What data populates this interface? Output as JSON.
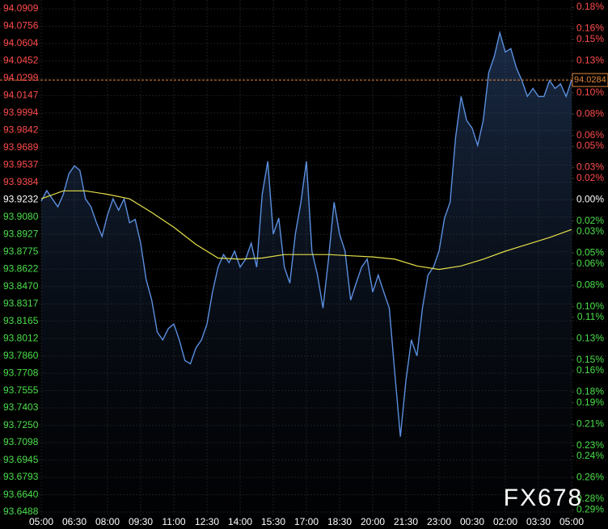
{
  "chart_data": {
    "type": "line",
    "watermark": "FX678",
    "xlim": [
      0,
      24
    ],
    "xticks": [
      {
        "value": 0,
        "label": "05:00"
      },
      {
        "value": 1.5,
        "label": "06:30"
      },
      {
        "value": 3,
        "label": "08:00"
      },
      {
        "value": 4.5,
        "label": "09:30"
      },
      {
        "value": 6,
        "label": "11:00"
      },
      {
        "value": 7.5,
        "label": "12:30"
      },
      {
        "value": 9,
        "label": "14:00"
      },
      {
        "value": 10.5,
        "label": "15:30"
      },
      {
        "value": 12,
        "label": "17:00"
      },
      {
        "value": 13.5,
        "label": "18:30"
      },
      {
        "value": 15,
        "label": "20:00"
      },
      {
        "value": 16.5,
        "label": "21:30"
      },
      {
        "value": 18,
        "label": "23:00"
      },
      {
        "value": 19.5,
        "label": "00:30"
      },
      {
        "value": 21,
        "label": "02:00"
      },
      {
        "value": 22.5,
        "label": "03:30"
      },
      {
        "value": 24,
        "label": "05:00"
      }
    ],
    "ylim": [
      93.6488,
      94.0909
    ],
    "yticks": [
      94.0909,
      94.0756,
      94.0604,
      94.0452,
      94.0299,
      94.0147,
      93.9994,
      93.9842,
      93.9689,
      93.9537,
      93.9384,
      93.9232,
      {
        "value": 93.908,
        "label": "93.9080"
      },
      93.8927,
      93.8775,
      93.8622,
      {
        "value": 93.847,
        "label": "93.8470"
      },
      93.8317,
      93.8165,
      93.8012,
      {
        "value": 93.786,
        "label": "93.7860"
      },
      93.7708,
      93.7555,
      93.7403,
      {
        "value": 93.725,
        "label": "93.7250"
      },
      93.7098,
      93.6945,
      93.6793,
      {
        "value": 93.664,
        "label": "93.6640"
      },
      93.6488
    ],
    "y2lim": [
      -0.2922,
      0.1785
    ],
    "y2ticks": [
      {
        "value": 0.18,
        "label": "0.18%"
      },
      {
        "value": 0.16,
        "label": "0.16%"
      },
      {
        "value": 0.15,
        "label": "0.15%"
      },
      {
        "value": 0.13,
        "label": "0.13%"
      },
      {
        "value": 0.11,
        "label": "0.11%"
      },
      {
        "value": 0.1,
        "label": "0.10%"
      },
      {
        "value": 0.08,
        "label": "0.08%"
      },
      {
        "value": 0.06,
        "label": "0.06%"
      },
      {
        "value": 0.05,
        "label": "0.05%"
      },
      {
        "value": 0.03,
        "label": "0.03%"
      },
      {
        "value": 0.02,
        "label": "0.02%"
      },
      {
        "value": 0,
        "label": "0.00%"
      },
      {
        "value": -0.02,
        "label": "0.02%"
      },
      {
        "value": -0.03,
        "label": "0.03%"
      },
      {
        "value": -0.05,
        "label": "0.05%"
      },
      {
        "value": -0.06,
        "label": "0.06%"
      },
      {
        "value": -0.08,
        "label": "0.08%"
      },
      {
        "value": -0.1,
        "label": "0.10%"
      },
      {
        "value": -0.11,
        "label": "0.11%"
      },
      {
        "value": -0.13,
        "label": "0.13%"
      },
      {
        "value": -0.15,
        "label": "0.15%"
      },
      {
        "value": -0.16,
        "label": "0.16%"
      },
      {
        "value": -0.18,
        "label": "0.18%"
      },
      {
        "value": -0.19,
        "label": "0.19%"
      },
      {
        "value": -0.21,
        "label": "0.21%"
      },
      {
        "value": -0.23,
        "label": "0.23%"
      },
      {
        "value": -0.24,
        "label": "0.24%"
      },
      {
        "value": -0.26,
        "label": "0.26%"
      },
      {
        "value": -0.28,
        "label": "0.28%"
      },
      {
        "value": -0.29,
        "label": "0.29%"
      }
    ],
    "grid": true,
    "last_price": 94.0284,
    "series": [
      {
        "color": "#5b8fe0",
        "area": true,
        "x": [
          0,
          0.25,
          0.5,
          0.75,
          1,
          1.25,
          1.5,
          1.75,
          2,
          2.25,
          2.5,
          2.75,
          3,
          3.25,
          3.5,
          3.75,
          4,
          4.25,
          4.5,
          4.75,
          5,
          5.25,
          5.5,
          5.75,
          6,
          6.25,
          6.5,
          6.75,
          7,
          7.25,
          7.5,
          7.75,
          8,
          8.25,
          8.5,
          8.75,
          9,
          9.25,
          9.5,
          9.75,
          10,
          10.25,
          10.5,
          10.75,
          11,
          11.25,
          11.5,
          11.75,
          12,
          12.25,
          12.5,
          12.75,
          13,
          13.25,
          13.5,
          13.75,
          14,
          14.25,
          14.5,
          14.75,
          15,
          15.25,
          15.5,
          15.75,
          16,
          16.25,
          16.5,
          16.75,
          17,
          17.25,
          17.5,
          17.75,
          18,
          18.25,
          18.5,
          18.75,
          19,
          19.25,
          19.5,
          19.75,
          20,
          20.25,
          20.5,
          20.75,
          21,
          21.25,
          21.5,
          21.75,
          22,
          22.25,
          22.5,
          22.75,
          23,
          23.25,
          23.5,
          23.75,
          24
        ],
        "values": [
          93.922,
          93.9312,
          93.924,
          93.917,
          93.928,
          93.946,
          93.953,
          93.949,
          93.924,
          93.917,
          93.903,
          93.891,
          93.91,
          93.924,
          93.914,
          93.924,
          93.903,
          93.906,
          93.885,
          93.853,
          93.835,
          93.807,
          93.8,
          93.81,
          93.814,
          93.8,
          93.782,
          93.779,
          93.793,
          93.8,
          93.814,
          93.842,
          93.864,
          93.875,
          93.868,
          93.878,
          93.864,
          93.871,
          93.885,
          93.864,
          93.928,
          93.957,
          93.893,
          93.907,
          93.864,
          93.85,
          93.893,
          93.921,
          93.957,
          93.878,
          93.857,
          93.828,
          93.871,
          93.921,
          93.893,
          93.878,
          93.835,
          93.85,
          93.864,
          93.871,
          93.842,
          93.857,
          93.842,
          93.828,
          93.771,
          93.715,
          93.764,
          93.8,
          93.786,
          93.828,
          93.857,
          93.864,
          93.878,
          93.907,
          93.921,
          93.978,
          94.014,
          93.993,
          93.986,
          93.971,
          93.993,
          94.035,
          94.049,
          94.07,
          94.053,
          94.056,
          94.039,
          94.028,
          94.014,
          94.021,
          94.014,
          94.014,
          94.028,
          94.021,
          94.025,
          94.014,
          94.0284
        ]
      },
      {
        "color": "#e6e04a",
        "area": false,
        "x": [
          0,
          1,
          2,
          3,
          4,
          5,
          6,
          7,
          8,
          9,
          10,
          11,
          12,
          13,
          14,
          15,
          16,
          17,
          18,
          19,
          20,
          21,
          22,
          23,
          24
        ],
        "values": [
          93.924,
          93.931,
          93.931,
          93.928,
          93.924,
          93.912,
          93.899,
          93.884,
          93.872,
          93.871,
          93.872,
          93.875,
          93.875,
          93.875,
          93.874,
          93.873,
          93.871,
          93.865,
          93.862,
          93.865,
          93.871,
          93.878,
          93.884,
          93.89,
          93.897
        ]
      }
    ]
  }
}
